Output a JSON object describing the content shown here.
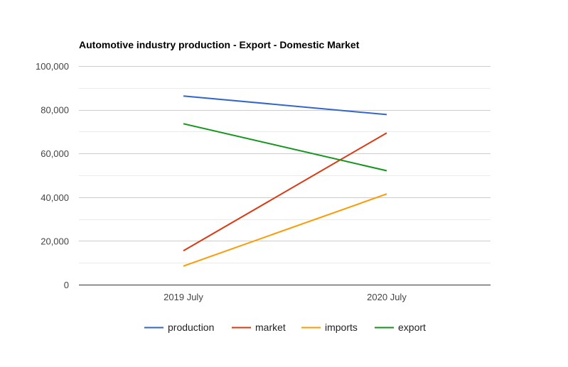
{
  "chart_data": {
    "type": "line",
    "title": "Automotive industry production - Export - Domestic Market",
    "xlabel": "",
    "ylabel": "",
    "categories": [
      "2019 July",
      "2020 July"
    ],
    "ylim": [
      0,
      100000
    ],
    "yticks": [
      0,
      20000,
      40000,
      60000,
      80000,
      100000
    ],
    "ytick_labels": [
      "0",
      "20,000",
      "40,000",
      "60,000",
      "80,000",
      "100,000"
    ],
    "grid": true,
    "legend_position": "bottom",
    "series": [
      {
        "name": "production",
        "color": "#3366cc",
        "values": [
          86300,
          77800
        ]
      },
      {
        "name": "market",
        "color": "#dc3912",
        "values": [
          15500,
          69400
        ]
      },
      {
        "name": "imports",
        "color": "#ff9900",
        "values": [
          8500,
          41500
        ]
      },
      {
        "name": "export",
        "color": "#109618",
        "values": [
          73600,
          52100
        ]
      }
    ]
  }
}
